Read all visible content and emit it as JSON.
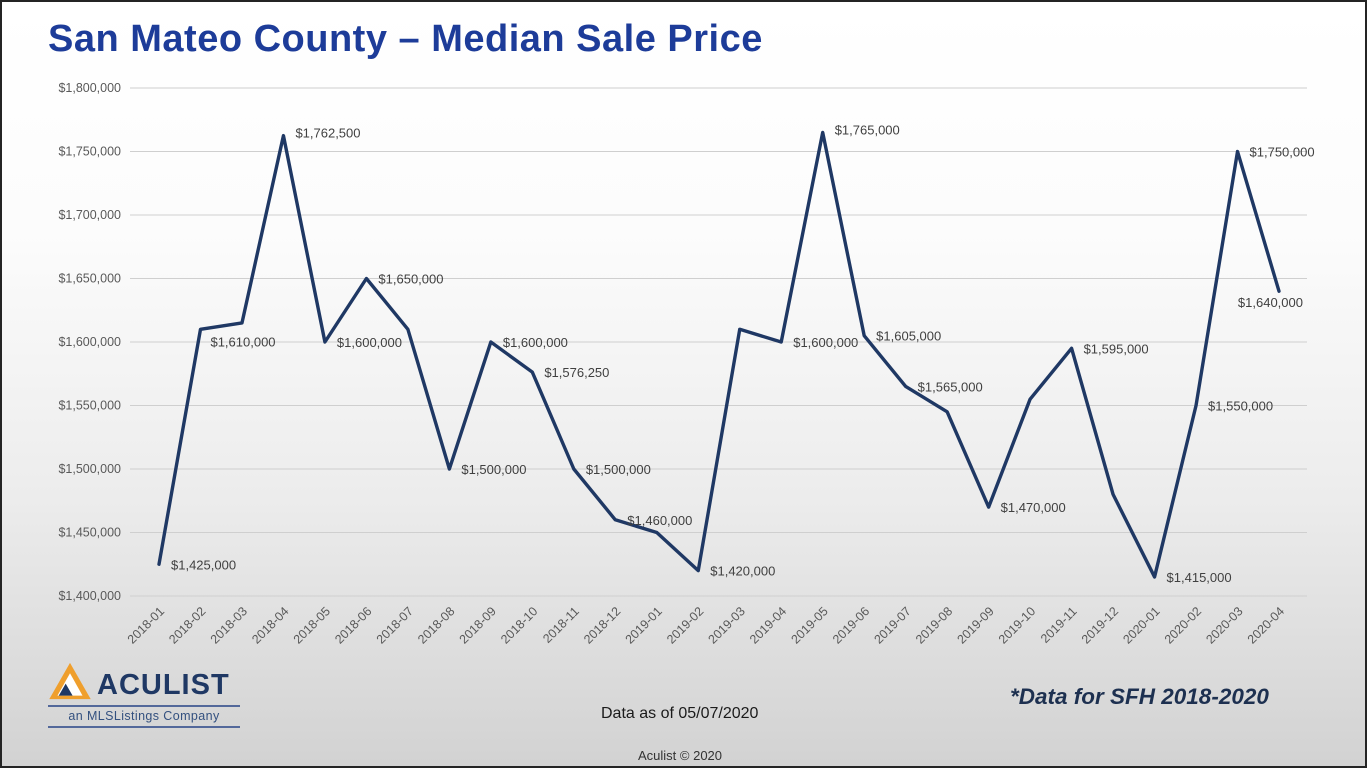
{
  "header": {
    "title": "San Mateo County – Median Sale Price"
  },
  "footer": {
    "logo_brand": "ACULIST",
    "logo_tagline": "an MLSListings Company",
    "data_as_of": "Data as of 05/07/2020",
    "copyright": "Aculist © 2020",
    "note": "*Data for SFH 2018-2020"
  },
  "colors": {
    "title_text": "#1d3c99",
    "series_line": "#1f3864",
    "gridline": "#cfcfcf",
    "tick_text": "#595959",
    "data_label_text": "#404040",
    "logo_orange": "#ef9f2d",
    "logo_navy": "#1f3864"
  },
  "chart_data": {
    "type": "line",
    "title": "San Mateo County – Median Sale Price",
    "xlabel": "",
    "ylabel": "",
    "ylim": [
      1400000,
      1800000
    ],
    "grid": true,
    "legend": "none",
    "yticks": [
      {
        "value": 1800000,
        "label": "$1,800,000"
      },
      {
        "value": 1750000,
        "label": "$1,750,000"
      },
      {
        "value": 1700000,
        "label": "$1,700,000"
      },
      {
        "value": 1650000,
        "label": "$1,650,000"
      },
      {
        "value": 1600000,
        "label": "$1,600,000"
      },
      {
        "value": 1550000,
        "label": "$1,550,000"
      },
      {
        "value": 1500000,
        "label": "$1,500,000"
      },
      {
        "value": 1450000,
        "label": "$1,450,000"
      },
      {
        "value": 1400000,
        "label": "$1,400,000"
      }
    ],
    "points": [
      {
        "month": "2018-01",
        "value": 1425000,
        "label": "$1,425,000"
      },
      {
        "month": "2018-02",
        "value": 1610000,
        "label": "$1,610,000",
        "label_offset": [
          10,
          17
        ]
      },
      {
        "month": "2018-03",
        "value": 1615000,
        "label": null
      },
      {
        "month": "2018-04",
        "value": 1762500,
        "label": "$1,762,500",
        "label_offset": [
          12,
          2
        ]
      },
      {
        "month": "2018-05",
        "value": 1600000,
        "label": "$1,600,000"
      },
      {
        "month": "2018-06",
        "value": 1650000,
        "label": "$1,650,000"
      },
      {
        "month": "2018-07",
        "value": 1610000,
        "label": null
      },
      {
        "month": "2018-08",
        "value": 1500000,
        "label": "$1,500,000"
      },
      {
        "month": "2018-09",
        "value": 1600000,
        "label": "$1,600,000"
      },
      {
        "month": "2018-10",
        "value": 1576250,
        "label": "$1,576,250"
      },
      {
        "month": "2018-11",
        "value": 1500000,
        "label": "$1,500,000"
      },
      {
        "month": "2018-12",
        "value": 1460000,
        "label": "$1,460,000"
      },
      {
        "month": "2019-01",
        "value": 1450000,
        "label": null
      },
      {
        "month": "2019-02",
        "value": 1420000,
        "label": "$1,420,000"
      },
      {
        "month": "2019-03",
        "value": 1610000,
        "label": null
      },
      {
        "month": "2019-04",
        "value": 1600000,
        "label": "$1,600,000"
      },
      {
        "month": "2019-05",
        "value": 1765000,
        "label": "$1,765,000",
        "label_offset": [
          12,
          2
        ]
      },
      {
        "month": "2019-06",
        "value": 1605000,
        "label": "$1,605,000"
      },
      {
        "month": "2019-07",
        "value": 1565000,
        "label": "$1,565,000"
      },
      {
        "month": "2019-08",
        "value": 1545000,
        "label": null
      },
      {
        "month": "2019-09",
        "value": 1470000,
        "label": "$1,470,000"
      },
      {
        "month": "2019-10",
        "value": 1555000,
        "label": null
      },
      {
        "month": "2019-11",
        "value": 1595000,
        "label": "$1,595,000"
      },
      {
        "month": "2019-12",
        "value": 1480000,
        "label": null
      },
      {
        "month": "2020-01",
        "value": 1415000,
        "label": "$1,415,000"
      },
      {
        "month": "2020-02",
        "value": 1550000,
        "label": "$1,550,000"
      },
      {
        "month": "2020-03",
        "value": 1750000,
        "label": "$1,750,000"
      },
      {
        "month": "2020-04",
        "value": 1640000,
        "label": "$1,640,000",
        "label_anchor": "end",
        "label_offset": [
          24,
          16
        ]
      }
    ]
  }
}
